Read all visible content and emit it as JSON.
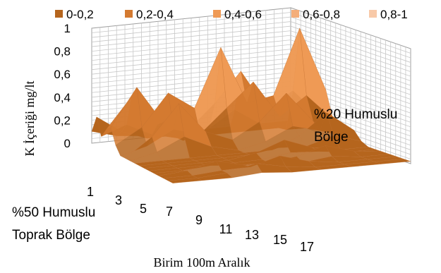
{
  "chart_data": {
    "type": "surface",
    "legend": {
      "placement": "top",
      "entries": [
        {
          "label": "0-0,2",
          "color": "#b5651d"
        },
        {
          "label": "0,2-0,4",
          "color": "#d47a30"
        },
        {
          "label": "0,4-0,6",
          "color": "#ef9a55"
        },
        {
          "label": "0,6-0,8",
          "color": "#f4ae7a"
        },
        {
          "label": "0,8-1",
          "color": "#f8c9a8"
        }
      ]
    },
    "ylabel": "K İçeriği mg/lt",
    "xlabel": "Birim 100m Aralık",
    "zlim": [
      0,
      1
    ],
    "z_ticks": [
      "0",
      "0,2",
      "0,4",
      "0,6",
      "0,8",
      "1"
    ],
    "x_ticks": [
      "1",
      "3",
      "5",
      "7",
      "9",
      "11",
      "13",
      "15",
      "17"
    ],
    "grid": true,
    "annotations": [
      {
        "id": "front",
        "lines": [
          "%50 Humuslu",
          "Toprak Bölge"
        ]
      },
      {
        "id": "back",
        "lines": [
          "%20 Humuslu",
          "Bölge"
        ]
      }
    ],
    "surface": {
      "rows": 18,
      "cols": 9,
      "peaks": [
        {
          "row": 1,
          "col": 0,
          "value": 0.25
        },
        {
          "row": 3,
          "col": 1,
          "value": 0.45
        },
        {
          "row": 4,
          "col": 1,
          "value": 0.55
        },
        {
          "row": 5,
          "col": 2,
          "value": 0.5
        },
        {
          "row": 7,
          "col": 2,
          "value": 0.45
        },
        {
          "row": 5,
          "col": 4,
          "value": 0.85
        },
        {
          "row": 4,
          "col": 5,
          "value": 0.6
        },
        {
          "row": 6,
          "col": 5,
          "value": 0.55
        },
        {
          "row": 5,
          "col": 7,
          "value": 0.95
        },
        {
          "row": 7,
          "col": 6,
          "value": 0.45
        },
        {
          "row": 9,
          "col": 7,
          "value": 0.3
        },
        {
          "row": 11,
          "col": 5,
          "value": 0.15
        },
        {
          "row": 13,
          "col": 6,
          "value": 0.12
        },
        {
          "row": 15,
          "col": 4,
          "value": 0.12
        },
        {
          "row": 14,
          "col": 2,
          "value": 0.1
        },
        {
          "row": 16,
          "col": 3,
          "value": 0.1
        }
      ]
    }
  }
}
